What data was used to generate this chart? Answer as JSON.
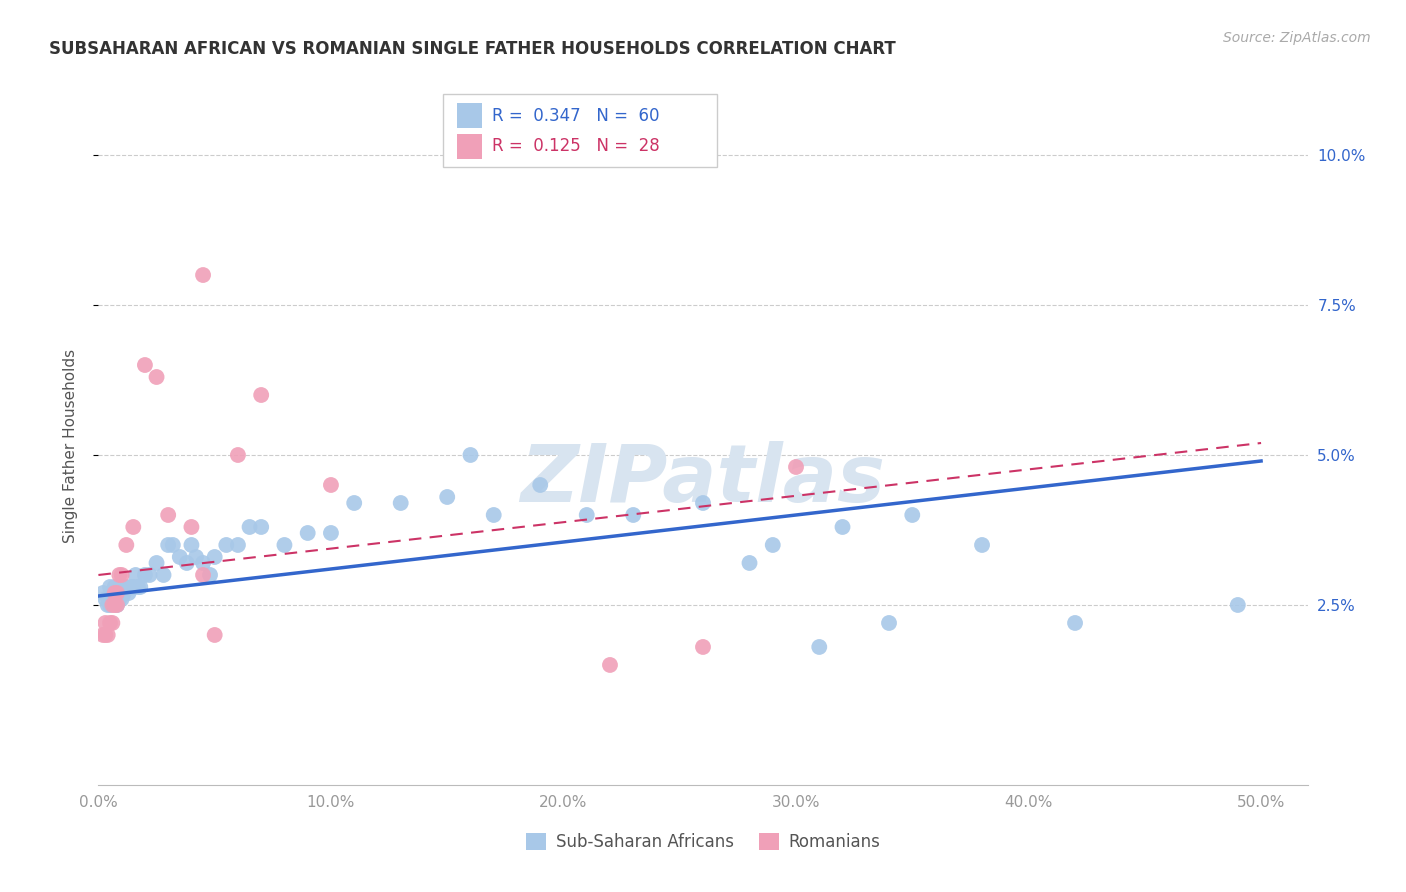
{
  "title": "SUBSAHARAN AFRICAN VS ROMANIAN SINGLE FATHER HOUSEHOLDS CORRELATION CHART",
  "source": "Source: ZipAtlas.com",
  "ylabel": "Single Father Households",
  "xlim": [
    0.0,
    0.52
  ],
  "ylim": [
    -0.005,
    0.108
  ],
  "xticks": [
    0.0,
    0.1,
    0.2,
    0.3,
    0.4,
    0.5
  ],
  "xtick_labels": [
    "0.0%",
    "10.0%",
    "20.0%",
    "30.0%",
    "40.0%",
    "50.0%"
  ],
  "ytick_positions": [
    0.025,
    0.05,
    0.075,
    0.1
  ],
  "ytick_labels": [
    "2.5%",
    "5.0%",
    "7.5%",
    "10.0%"
  ],
  "blue_color": "#A8C8E8",
  "pink_color": "#F0A0B8",
  "blue_line_color": "#3366CC",
  "pink_line_color": "#CC3366",
  "background_color": "#FFFFFF",
  "watermark_color": "#D8E4F0",
  "legend_R_blue": "0.347",
  "legend_N_blue": "60",
  "legend_R_pink": "0.125",
  "legend_N_pink": "28",
  "legend_label_blue": "Sub-Saharan Africans",
  "legend_label_pink": "Romanians",
  "blue_scatter_x": [
    0.002,
    0.003,
    0.004,
    0.005,
    0.005,
    0.006,
    0.007,
    0.007,
    0.008,
    0.008,
    0.009,
    0.009,
    0.01,
    0.01,
    0.011,
    0.012,
    0.013,
    0.014,
    0.015,
    0.016,
    0.017,
    0.018,
    0.02,
    0.022,
    0.025,
    0.028,
    0.03,
    0.032,
    0.035,
    0.038,
    0.04,
    0.042,
    0.045,
    0.048,
    0.05,
    0.055,
    0.06,
    0.065,
    0.07,
    0.08,
    0.09,
    0.1,
    0.11,
    0.13,
    0.15,
    0.17,
    0.19,
    0.21,
    0.23,
    0.26,
    0.29,
    0.32,
    0.35,
    0.38,
    0.31,
    0.34,
    0.42,
    0.49,
    0.16,
    0.28
  ],
  "blue_scatter_y": [
    0.027,
    0.026,
    0.025,
    0.028,
    0.025,
    0.027,
    0.026,
    0.028,
    0.025,
    0.027,
    0.026,
    0.027,
    0.028,
    0.026,
    0.027,
    0.028,
    0.027,
    0.028,
    0.028,
    0.03,
    0.028,
    0.028,
    0.03,
    0.03,
    0.032,
    0.03,
    0.035,
    0.035,
    0.033,
    0.032,
    0.035,
    0.033,
    0.032,
    0.03,
    0.033,
    0.035,
    0.035,
    0.038,
    0.038,
    0.035,
    0.037,
    0.037,
    0.042,
    0.042,
    0.043,
    0.04,
    0.045,
    0.04,
    0.04,
    0.042,
    0.035,
    0.038,
    0.04,
    0.035,
    0.018,
    0.022,
    0.022,
    0.025,
    0.05,
    0.032
  ],
  "pink_scatter_x": [
    0.002,
    0.003,
    0.003,
    0.004,
    0.005,
    0.006,
    0.006,
    0.007,
    0.007,
    0.008,
    0.008,
    0.009,
    0.01,
    0.012,
    0.015,
    0.02,
    0.025,
    0.03,
    0.04,
    0.045,
    0.05,
    0.06,
    0.1,
    0.22,
    0.26,
    0.3,
    0.045,
    0.07
  ],
  "pink_scatter_y": [
    0.02,
    0.022,
    0.02,
    0.02,
    0.022,
    0.025,
    0.022,
    0.027,
    0.025,
    0.027,
    0.025,
    0.03,
    0.03,
    0.035,
    0.038,
    0.065,
    0.063,
    0.04,
    0.038,
    0.03,
    0.02,
    0.05,
    0.045,
    0.015,
    0.018,
    0.048,
    0.08,
    0.06
  ],
  "blue_trendline_x": [
    0.0,
    0.5
  ],
  "blue_trendline_y": [
    0.0265,
    0.049
  ],
  "pink_trendline_x": [
    0.0,
    0.5
  ],
  "pink_trendline_y": [
    0.03,
    0.052
  ]
}
